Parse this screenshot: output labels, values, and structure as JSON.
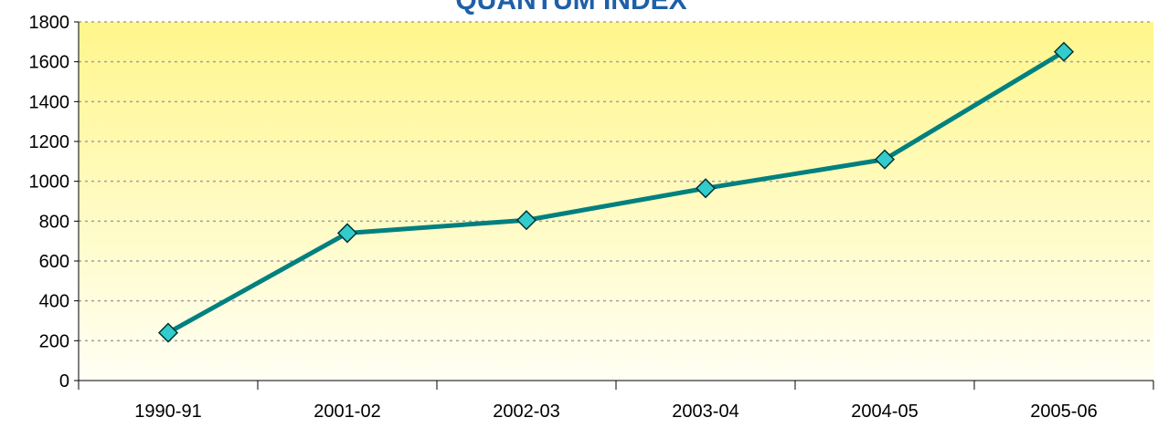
{
  "chart_data": {
    "type": "line",
    "title": "QUANTUM INDEX",
    "categories": [
      "1990-91",
      "2001-02",
      "2002-03",
      "2003-04",
      "2004-05",
      "2005-06"
    ],
    "values": [
      240,
      740,
      805,
      965,
      1110,
      1650
    ],
    "color": "#00807f",
    "marker_color": "#33cccc",
    "ylim": [
      0,
      1800
    ],
    "yticks": [
      0,
      200,
      400,
      600,
      800,
      1000,
      1200,
      1400,
      1600,
      1800
    ],
    "grid": true
  }
}
